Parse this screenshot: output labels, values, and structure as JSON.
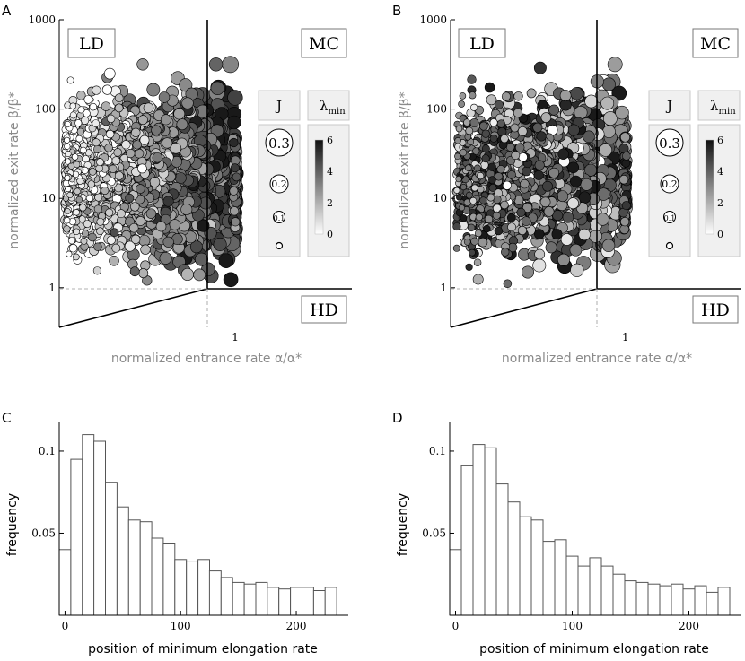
{
  "panels": {
    "a": {
      "letter": "A"
    },
    "b": {
      "letter": "B"
    },
    "c": {
      "letter": "C"
    },
    "d": {
      "letter": "D"
    }
  },
  "chart_data": [
    {
      "id": "A",
      "type": "scatter",
      "xlabel": "normalized entrance rate α/α*",
      "ylabel": "normalized exit rate β/β*",
      "xscale": "log",
      "yscale": "log",
      "x_ticks": [
        {
          "value": 1,
          "label": "1"
        }
      ],
      "y_ticks": [
        {
          "value": 1,
          "label": "1"
        },
        {
          "value": 10,
          "label": "10"
        },
        {
          "value": 100,
          "label": "100"
        },
        {
          "value": 1000,
          "label": "1000"
        }
      ],
      "xlim": [
        0.1,
        4.6
      ],
      "ylim": [
        0.36,
        1000
      ],
      "regions": [
        "LD",
        "MC",
        "HD"
      ],
      "size_legend": {
        "title": "J",
        "values": [
          "0.3",
          "0.2",
          "0.1",
          ""
        ]
      },
      "color_legend": {
        "title": "λ",
        "title_sub": "min",
        "ticks": [
          "6",
          "4",
          "2",
          "0"
        ],
        "range": [
          0,
          6
        ]
      },
      "seed": 7,
      "point_count": 2600,
      "marginal_limit": 1.0
    },
    {
      "id": "B",
      "type": "scatter",
      "xlabel": "normalized entrance rate α/α*",
      "ylabel": "normalized exit rate β/β*",
      "xscale": "log",
      "yscale": "log",
      "x_ticks": [
        {
          "value": 1,
          "label": "1"
        }
      ],
      "y_ticks": [
        {
          "value": 1,
          "label": "1"
        },
        {
          "value": 10,
          "label": "10"
        },
        {
          "value": 100,
          "label": "100"
        },
        {
          "value": 1000,
          "label": "1000"
        }
      ],
      "xlim": [
        0.1,
        4.6
      ],
      "ylim": [
        0.36,
        1000
      ],
      "regions": [
        "LD",
        "MC",
        "HD"
      ],
      "size_legend": {
        "title": "J",
        "values": [
          "0.3",
          "0.2",
          "0.1",
          ""
        ]
      },
      "color_legend": {
        "title": "λ",
        "title_sub": "min",
        "ticks": [
          "6",
          "4",
          "2",
          "0"
        ],
        "range": [
          0,
          6
        ]
      },
      "seed": 19,
      "point_count": 1800,
      "marginal_limit": 1.0
    },
    {
      "id": "C",
      "type": "bar",
      "xlabel": "position of minimum elongation rate",
      "ylabel": "frequency",
      "bin_width": 10,
      "bin_start": 0,
      "values": [
        0.04,
        0.095,
        0.11,
        0.106,
        0.081,
        0.066,
        0.058,
        0.057,
        0.047,
        0.044,
        0.034,
        0.033,
        0.034,
        0.027,
        0.023,
        0.02,
        0.019,
        0.02,
        0.017,
        0.016,
        0.017,
        0.017,
        0.015,
        0.017
      ],
      "xlim": [
        -5,
        245
      ],
      "ylim": [
        0,
        0.118
      ],
      "x_ticks": [
        {
          "value": 0,
          "label": "0"
        },
        {
          "value": 100,
          "label": "100"
        },
        {
          "value": 200,
          "label": "200"
        }
      ],
      "y_ticks": [
        {
          "value": 0.05,
          "label": "0.05"
        },
        {
          "value": 0.1,
          "label": "0.1"
        }
      ]
    },
    {
      "id": "D",
      "type": "bar",
      "xlabel": "position of minimum elongation rate",
      "ylabel": "frequency",
      "bin_width": 10,
      "bin_start": 0,
      "values": [
        0.04,
        0.091,
        0.104,
        0.102,
        0.08,
        0.069,
        0.06,
        0.058,
        0.045,
        0.046,
        0.036,
        0.03,
        0.035,
        0.03,
        0.025,
        0.021,
        0.02,
        0.019,
        0.018,
        0.019,
        0.016,
        0.018,
        0.014,
        0.017
      ],
      "xlim": [
        -5,
        245
      ],
      "ylim": [
        0,
        0.118
      ],
      "x_ticks": [
        {
          "value": 0,
          "label": "0"
        },
        {
          "value": 100,
          "label": "100"
        },
        {
          "value": 200,
          "label": "200"
        }
      ],
      "y_ticks": [
        {
          "value": 0.05,
          "label": "0.05"
        },
        {
          "value": 0.1,
          "label": "0.1"
        }
      ]
    }
  ]
}
